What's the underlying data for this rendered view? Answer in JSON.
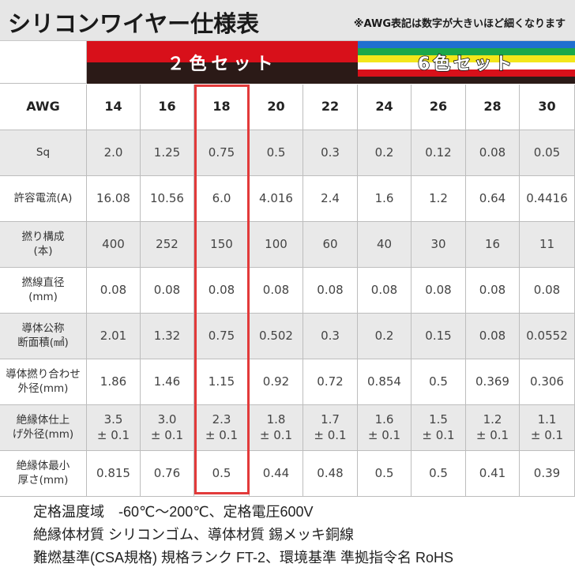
{
  "title": "シリコンワイヤー仕様表",
  "note": "※AWG表記は数字が大きいほど細くなります",
  "groups": {
    "two_color": "２色セット",
    "six_color": "6色セット"
  },
  "colors": {
    "red": "#d8101a",
    "black": "#2b1a17",
    "highlight": "#e23a3a",
    "stripes": [
      "#1f6fd0",
      "#1aa84a",
      "#f3e61a",
      "#ffffff",
      "#d8101a",
      "#2b1a17"
    ]
  },
  "columns": [
    "AWG",
    "14",
    "16",
    "18",
    "20",
    "22",
    "24",
    "26",
    "28",
    "30"
  ],
  "highlighted_column": "18",
  "rows": [
    {
      "label": [
        "Sq"
      ],
      "values": [
        "2.0",
        "1.25",
        "0.75",
        "0.5",
        "0.3",
        "0.2",
        "0.12",
        "0.08",
        "0.05"
      ]
    },
    {
      "label": [
        "許容電流(A)"
      ],
      "values": [
        "16.08",
        "10.56",
        "6.0",
        "4.016",
        "2.4",
        "1.6",
        "1.2",
        "0.64",
        "0.4416"
      ]
    },
    {
      "label": [
        "撚り構成",
        "(本)"
      ],
      "values": [
        "400",
        "252",
        "150",
        "100",
        "60",
        "40",
        "30",
        "16",
        "11"
      ]
    },
    {
      "label": [
        "撚線直径",
        "(mm)"
      ],
      "values": [
        "0.08",
        "0.08",
        "0.08",
        "0.08",
        "0.08",
        "0.08",
        "0.08",
        "0.08",
        "0.08"
      ]
    },
    {
      "label": [
        "導体公称",
        "断面積(㎟)"
      ],
      "values": [
        "2.01",
        "1.32",
        "0.75",
        "0.502",
        "0.3",
        "0.2",
        "0.15",
        "0.08",
        "0.0552"
      ]
    },
    {
      "label": [
        "導体撚り合わせ",
        "外径(mm)"
      ],
      "values": [
        "1.86",
        "1.46",
        "1.15",
        "0.92",
        "0.72",
        "0.854",
        "0.5",
        "0.369",
        "0.306"
      ]
    },
    {
      "label": [
        "絶縁体仕上",
        "げ外径(mm)"
      ],
      "values": [
        [
          "3.5",
          "± 0.1"
        ],
        [
          "3.0",
          "± 0.1"
        ],
        [
          "2.3",
          "± 0.1"
        ],
        [
          "1.8",
          "± 0.1"
        ],
        [
          "1.7",
          "± 0.1"
        ],
        [
          "1.6",
          "± 0.1"
        ],
        [
          "1.5",
          "± 0.1"
        ],
        [
          "1.2",
          "± 0.1"
        ],
        [
          "1.1",
          "± 0.1"
        ]
      ]
    },
    {
      "label": [
        "絶縁体最小",
        "厚さ(mm)"
      ],
      "values": [
        "0.815",
        "0.76",
        "0.5",
        "0.44",
        "0.48",
        "0.5",
        "0.5",
        "0.41",
        "0.39"
      ]
    }
  ],
  "footer": [
    "定格温度域　-60℃～200℃、定格電圧600V",
    "絶縁体材質 シリコンゴム、導体材質 錫メッキ銅線",
    "難燃基準(CSA規格) 規格ランク FT-2、環境基準 準拠指令名 RoHS"
  ]
}
